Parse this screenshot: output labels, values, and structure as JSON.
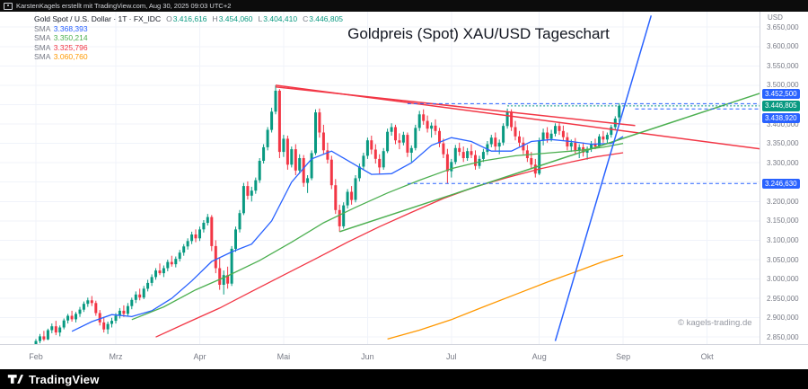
{
  "attribution_bar": {
    "text": "KarstenKagels erstellt mit TradingView.com, Aug 30, 2025 09:03 UTC+2"
  },
  "title": "Goldpreis (Spot) XAU/USD Tageschart",
  "watermark": "© kagels-trading.de",
  "footer": {
    "brand": "TradingView"
  },
  "legend": {
    "symbol": "Gold Spot / U.S. Dollar · 1T · FX_IDC",
    "ohlc": [
      {
        "k": "O",
        "v": "3.416,616"
      },
      {
        "k": "H",
        "v": "3.454,060"
      },
      {
        "k": "L",
        "v": "3.404,410"
      },
      {
        "k": "C",
        "v": "3.446,805"
      }
    ],
    "smas": [
      {
        "k": "SMA",
        "v": "3.368,393",
        "color": "#2962ff"
      },
      {
        "k": "SMA",
        "v": "3.350,214",
        "color": "#4caf50"
      },
      {
        "k": "SMA",
        "v": "3.325,796",
        "color": "#f23645"
      },
      {
        "k": "SMA",
        "v": "3.060,760",
        "color": "#ff9800"
      }
    ]
  },
  "chart_data": {
    "type": "candlestick",
    "title": "Goldpreis (Spot) XAU/USD Tageschart",
    "symbol": "Gold Spot / U.S. Dollar",
    "timeframe": "1T",
    "exchange": "FX_IDC",
    "last_bar": {
      "o": 3416.616,
      "h": 3454.06,
      "l": 3404.41,
      "c": 3446.805
    },
    "colors": {
      "up": "#089981",
      "down": "#f23645",
      "grid": "#f0f3fa",
      "axis_text": "#787b86"
    },
    "y_axis": {
      "currency": "USD",
      "min": 2832,
      "max": 3690,
      "ticks": [
        3650,
        3600,
        3550,
        3500,
        3400,
        3350,
        3300,
        3200,
        3150,
        3100,
        3050,
        3000,
        2950,
        2900,
        2850
      ],
      "grid": [
        2850,
        2900,
        2950,
        3000,
        3050,
        3100,
        3150,
        3200,
        3250,
        3300,
        3350,
        3400,
        3450,
        3500,
        3550,
        3600,
        3650
      ]
    },
    "x_axis": {
      "total_slots": 182,
      "months": [
        {
          "label": "Feb",
          "slot": 0
        },
        {
          "label": "Mrz",
          "slot": 20
        },
        {
          "label": "Apr",
          "slot": 41
        },
        {
          "label": "Mai",
          "slot": 62
        },
        {
          "label": "Jun",
          "slot": 83
        },
        {
          "label": "Jul",
          "slot": 104
        },
        {
          "label": "Aug",
          "slot": 126
        },
        {
          "label": "Sep",
          "slot": 147
        },
        {
          "label": "Okt",
          "slot": 168
        }
      ]
    },
    "candles": [
      [
        2832,
        2845,
        2815,
        2840
      ],
      [
        2840,
        2858,
        2834,
        2852
      ],
      [
        2852,
        2866,
        2840,
        2844
      ],
      [
        2844,
        2872,
        2842,
        2868
      ],
      [
        2868,
        2885,
        2860,
        2878
      ],
      [
        2878,
        2892,
        2855,
        2862
      ],
      [
        2862,
        2880,
        2852,
        2875
      ],
      [
        2875,
        2898,
        2870,
        2893
      ],
      [
        2893,
        2910,
        2885,
        2905
      ],
      [
        2905,
        2918,
        2890,
        2896
      ],
      [
        2896,
        2915,
        2888,
        2910
      ],
      [
        2910,
        2928,
        2902,
        2921
      ],
      [
        2921,
        2942,
        2915,
        2936
      ],
      [
        2936,
        2952,
        2928,
        2945
      ],
      [
        2945,
        2956,
        2930,
        2938
      ],
      [
        2938,
        2944,
        2905,
        2912
      ],
      [
        2912,
        2920,
        2880,
        2888
      ],
      [
        2888,
        2902,
        2862,
        2870
      ],
      [
        2870,
        2890,
        2858,
        2884
      ],
      [
        2884,
        2900,
        2875,
        2892
      ],
      [
        2892,
        2912,
        2885,
        2905
      ],
      [
        2905,
        2925,
        2898,
        2918
      ],
      [
        2918,
        2932,
        2902,
        2910
      ],
      [
        2910,
        2938,
        2905,
        2930
      ],
      [
        2930,
        2952,
        2922,
        2946
      ],
      [
        2946,
        2968,
        2938,
        2960
      ],
      [
        2960,
        2975,
        2945,
        2952
      ],
      [
        2952,
        2982,
        2948,
        2975
      ],
      [
        2975,
        2998,
        2968,
        2990
      ],
      [
        2990,
        3012,
        2982,
        3005
      ],
      [
        3005,
        3028,
        2998,
        3022
      ],
      [
        3022,
        3040,
        3010,
        3015
      ],
      [
        3015,
        3035,
        3005,
        3028
      ],
      [
        3028,
        3050,
        3020,
        3044
      ],
      [
        3044,
        3060,
        3032,
        3038
      ],
      [
        3038,
        3058,
        3030,
        3052
      ],
      [
        3052,
        3075,
        3045,
        3068
      ],
      [
        3068,
        3090,
        3060,
        3084
      ],
      [
        3084,
        3105,
        3076,
        3098
      ],
      [
        3098,
        3122,
        3090,
        3115
      ],
      [
        3115,
        3128,
        3095,
        3105
      ],
      [
        3105,
        3135,
        3098,
        3128
      ],
      [
        3128,
        3152,
        3120,
        3145
      ],
      [
        3145,
        3168,
        3138,
        3160
      ],
      [
        3160,
        3165,
        3072,
        3085
      ],
      [
        3085,
        3100,
        3015,
        3028
      ],
      [
        3028,
        3055,
        2972,
        2985
      ],
      [
        2985,
        3022,
        2960,
        3010
      ],
      [
        3010,
        3032,
        2975,
        2988
      ],
      [
        2988,
        3085,
        2982,
        3078
      ],
      [
        3078,
        3135,
        3070,
        3128
      ],
      [
        3128,
        3178,
        3120,
        3170
      ],
      [
        3170,
        3248,
        3165,
        3240
      ],
      [
        3240,
        3252,
        3205,
        3215
      ],
      [
        3215,
        3238,
        3200,
        3228
      ],
      [
        3228,
        3262,
        3220,
        3255
      ],
      [
        3255,
        3312,
        3248,
        3305
      ],
      [
        3305,
        3348,
        3298,
        3340
      ],
      [
        3340,
        3392,
        3332,
        3385
      ],
      [
        3385,
        3442,
        3378,
        3432
      ],
      [
        3432,
        3500,
        3425,
        3486
      ],
      [
        3486,
        3490,
        3312,
        3328
      ],
      [
        3328,
        3372,
        3315,
        3362
      ],
      [
        3362,
        3370,
        3282,
        3295
      ],
      [
        3295,
        3342,
        3288,
        3335
      ],
      [
        3335,
        3348,
        3268,
        3280
      ],
      [
        3280,
        3322,
        3272,
        3312
      ],
      [
        3312,
        3320,
        3238,
        3248
      ],
      [
        3248,
        3268,
        3222,
        3260
      ],
      [
        3260,
        3332,
        3255,
        3325
      ],
      [
        3325,
        3438,
        3320,
        3430
      ],
      [
        3430,
        3440,
        3365,
        3378
      ],
      [
        3378,
        3398,
        3322,
        3332
      ],
      [
        3332,
        3352,
        3298,
        3308
      ],
      [
        3308,
        3318,
        3232,
        3242
      ],
      [
        3242,
        3258,
        3168,
        3178
      ],
      [
        3178,
        3192,
        3122,
        3136
      ],
      [
        3136,
        3198,
        3130,
        3190
      ],
      [
        3190,
        3232,
        3182,
        3225
      ],
      [
        3225,
        3240,
        3192,
        3204
      ],
      [
        3204,
        3268,
        3198,
        3260
      ],
      [
        3260,
        3298,
        3252,
        3290
      ],
      [
        3290,
        3326,
        3282,
        3318
      ],
      [
        3318,
        3365,
        3310,
        3358
      ],
      [
        3358,
        3370,
        3322,
        3334
      ],
      [
        3334,
        3348,
        3298,
        3310
      ],
      [
        3310,
        3322,
        3272,
        3288
      ],
      [
        3288,
        3338,
        3282,
        3330
      ],
      [
        3330,
        3388,
        3325,
        3380
      ],
      [
        3380,
        3402,
        3370,
        3392
      ],
      [
        3392,
        3398,
        3348,
        3358
      ],
      [
        3358,
        3376,
        3335,
        3352
      ],
      [
        3352,
        3380,
        3345,
        3372
      ],
      [
        3372,
        3378,
        3315,
        3326
      ],
      [
        3326,
        3345,
        3302,
        3338
      ],
      [
        3338,
        3398,
        3332,
        3390
      ],
      [
        3390,
        3434,
        3382,
        3425
      ],
      [
        3425,
        3438,
        3398,
        3408
      ],
      [
        3408,
        3422,
        3378,
        3388
      ],
      [
        3388,
        3404,
        3365,
        3396
      ],
      [
        3396,
        3412,
        3372,
        3382
      ],
      [
        3382,
        3390,
        3340,
        3350
      ],
      [
        3350,
        3362,
        3312,
        3322
      ],
      [
        3322,
        3336,
        3247,
        3278
      ],
      [
        3278,
        3310,
        3262,
        3302
      ],
      [
        3302,
        3346,
        3296,
        3338
      ],
      [
        3338,
        3352,
        3318,
        3328
      ],
      [
        3328,
        3342,
        3302,
        3312
      ],
      [
        3312,
        3338,
        3305,
        3330
      ],
      [
        3330,
        3348,
        3312,
        3320
      ],
      [
        3320,
        3332,
        3282,
        3292
      ],
      [
        3292,
        3318,
        3285,
        3310
      ],
      [
        3310,
        3336,
        3302,
        3328
      ],
      [
        3328,
        3356,
        3320,
        3348
      ],
      [
        3348,
        3372,
        3340,
        3365
      ],
      [
        3365,
        3378,
        3332,
        3342
      ],
      [
        3342,
        3360,
        3322,
        3352
      ],
      [
        3352,
        3402,
        3345,
        3395
      ],
      [
        3395,
        3440,
        3388,
        3432
      ],
      [
        3432,
        3438,
        3382,
        3392
      ],
      [
        3392,
        3408,
        3358,
        3368
      ],
      [
        3368,
        3382,
        3342,
        3352
      ],
      [
        3352,
        3366,
        3322,
        3332
      ],
      [
        3332,
        3346,
        3302,
        3312
      ],
      [
        3312,
        3328,
        3285,
        3295
      ],
      [
        3295,
        3310,
        3262,
        3272
      ],
      [
        3272,
        3365,
        3268,
        3358
      ],
      [
        3358,
        3388,
        3345,
        3378
      ],
      [
        3378,
        3392,
        3352,
        3362
      ],
      [
        3362,
        3385,
        3355,
        3375
      ],
      [
        3375,
        3402,
        3368,
        3395
      ],
      [
        3395,
        3406,
        3372,
        3382
      ],
      [
        3382,
        3396,
        3358,
        3366
      ],
      [
        3366,
        3378,
        3332,
        3342
      ],
      [
        3342,
        3360,
        3328,
        3352
      ],
      [
        3352,
        3364,
        3322,
        3332
      ],
      [
        3332,
        3348,
        3312,
        3340
      ],
      [
        3340,
        3352,
        3316,
        3326
      ],
      [
        3326,
        3342,
        3308,
        3336
      ],
      [
        3336,
        3356,
        3328,
        3348
      ],
      [
        3348,
        3362,
        3335,
        3342
      ],
      [
        3342,
        3374,
        3338,
        3368
      ],
      [
        3368,
        3382,
        3352,
        3360
      ],
      [
        3360,
        3378,
        3348,
        3372
      ],
      [
        3372,
        3398,
        3365,
        3392
      ],
      [
        3392,
        3420,
        3385,
        3414
      ],
      [
        3417,
        3454,
        3404,
        3447
      ]
    ],
    "ma_lines": [
      {
        "name": "sma-20",
        "color": "#2962ff",
        "legend_value": "3.368,393",
        "points": [
          [
            9,
            2865
          ],
          [
            14,
            2890
          ],
          [
            19,
            2908
          ],
          [
            24,
            2903
          ],
          [
            29,
            2918
          ],
          [
            34,
            2950
          ],
          [
            39,
            2995
          ],
          [
            44,
            3045
          ],
          [
            49,
            3070
          ],
          [
            54,
            3090
          ],
          [
            59,
            3150
          ],
          [
            64,
            3250
          ],
          [
            69,
            3310
          ],
          [
            74,
            3330
          ],
          [
            79,
            3300
          ],
          [
            84,
            3270
          ],
          [
            89,
            3272
          ],
          [
            94,
            3300
          ],
          [
            99,
            3345
          ],
          [
            104,
            3365
          ],
          [
            109,
            3355
          ],
          [
            114,
            3330
          ],
          [
            119,
            3330
          ],
          [
            124,
            3355
          ],
          [
            129,
            3360
          ],
          [
            134,
            3355
          ],
          [
            139,
            3348
          ],
          [
            144,
            3350
          ],
          [
            147,
            3368
          ]
        ]
      },
      {
        "name": "sma-50",
        "color": "#4caf50",
        "legend_value": "3.350,214",
        "points": [
          [
            24,
            2895
          ],
          [
            32,
            2928
          ],
          [
            40,
            2972
          ],
          [
            48,
            3008
          ],
          [
            56,
            3048
          ],
          [
            64,
            3095
          ],
          [
            72,
            3145
          ],
          [
            80,
            3185
          ],
          [
            88,
            3222
          ],
          [
            96,
            3255
          ],
          [
            104,
            3285
          ],
          [
            112,
            3305
          ],
          [
            120,
            3318
          ],
          [
            128,
            3325
          ],
          [
            136,
            3332
          ],
          [
            142,
            3340
          ],
          [
            147,
            3350
          ]
        ]
      },
      {
        "name": "sma-100",
        "color": "#f23645",
        "legend_value": "3.325,796",
        "points": [
          [
            30,
            2850
          ],
          [
            38,
            2888
          ],
          [
            46,
            2925
          ],
          [
            54,
            2968
          ],
          [
            62,
            3010
          ],
          [
            70,
            3052
          ],
          [
            78,
            3095
          ],
          [
            86,
            3135
          ],
          [
            94,
            3172
          ],
          [
            102,
            3208
          ],
          [
            110,
            3238
          ],
          [
            118,
            3262
          ],
          [
            126,
            3284
          ],
          [
            134,
            3302
          ],
          [
            140,
            3315
          ],
          [
            147,
            3326
          ]
        ]
      },
      {
        "name": "sma-200",
        "color": "#ff9800",
        "legend_value": "3.060,760",
        "points": [
          [
            88,
            2845
          ],
          [
            96,
            2868
          ],
          [
            104,
            2895
          ],
          [
            112,
            2928
          ],
          [
            120,
            2960
          ],
          [
            128,
            2992
          ],
          [
            136,
            3022
          ],
          [
            142,
            3045
          ],
          [
            147,
            3061
          ]
        ]
      }
    ],
    "trendlines": [
      {
        "name": "descending-resistance-upper",
        "color": "#f23645",
        "from": [
          60,
          3500
        ],
        "to": [
          182,
          3335
        ]
      },
      {
        "name": "descending-resistance-lower",
        "color": "#f23645",
        "from": [
          60,
          3496
        ],
        "to": [
          150,
          3396
        ]
      },
      {
        "name": "ascending-support",
        "color": "#4caf50",
        "from": [
          76,
          3122
        ],
        "to": [
          182,
          3482
        ]
      },
      {
        "name": "steep-breakout-line",
        "color": "#2962ff",
        "from": [
          130,
          2840
        ],
        "to": [
          154,
          3680
        ]
      }
    ],
    "levels": [
      {
        "label": "3.452,500",
        "value": 3452.5,
        "color": "#2962ff",
        "from_slot": 93,
        "dash": "4 3",
        "shift": -11
      },
      {
        "label": "3.446,805",
        "value": 3446.805,
        "color": "#089981",
        "from_slot": 118,
        "dash": "2 2",
        "shift": 0
      },
      {
        "label": "3.438,920",
        "value": 3438.92,
        "color": "#2962ff",
        "from_slot": 150,
        "dash": "4 3",
        "shift": 10
      },
      {
        "label": "3.246,630",
        "value": 3246.63,
        "color": "#2962ff",
        "from_slot": 93,
        "dash": "4 3",
        "shift": 0
      }
    ]
  }
}
